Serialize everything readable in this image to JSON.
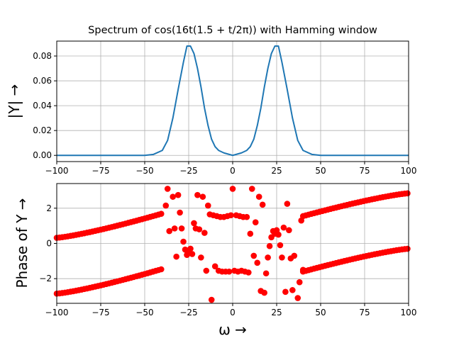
{
  "chart_data": [
    {
      "type": "line",
      "title": "Spectrum of cos(16t(1.5 + t/2π)) with Hamming window",
      "xlabel": "",
      "ylabel": "|Y| →",
      "xlim": [
        -100,
        100
      ],
      "ylim": [
        -0.005,
        0.092
      ],
      "x_ticks": [
        -100,
        -75,
        -50,
        -25,
        0,
        25,
        50,
        75,
        100
      ],
      "x_tick_labels": [
        "−100",
        "−75",
        "−50",
        "−25",
        "0",
        "25",
        "50",
        "75",
        "100"
      ],
      "y_ticks": [
        0,
        0.02,
        0.04,
        0.06,
        0.08
      ],
      "y_tick_labels": [
        "0.00",
        "0.02",
        "0.04",
        "0.06",
        "0.08"
      ],
      "grid": true,
      "line_color": "#1f77b4",
      "series": [
        {
          "x": [
            -100,
            -50,
            -45,
            -40,
            -37,
            -34,
            -31,
            -28,
            -26,
            -24,
            -22,
            -20,
            -18,
            -16,
            -14,
            -12,
            -10,
            -8,
            -5,
            0,
            5,
            8,
            10,
            12,
            14,
            16,
            18,
            20,
            22,
            24,
            26,
            28,
            31,
            34,
            37,
            40,
            45,
            50,
            100
          ],
          "y": [
            0.0,
            0.0,
            0.0008,
            0.004,
            0.012,
            0.03,
            0.053,
            0.075,
            0.088,
            0.088,
            0.082,
            0.07,
            0.055,
            0.038,
            0.024,
            0.013,
            0.007,
            0.004,
            0.002,
            0.0,
            0.002,
            0.004,
            0.007,
            0.013,
            0.024,
            0.038,
            0.055,
            0.07,
            0.082,
            0.088,
            0.088,
            0.075,
            0.053,
            0.03,
            0.012,
            0.004,
            0.0008,
            0.0,
            0.0
          ]
        }
      ]
    },
    {
      "type": "scatter",
      "title": "",
      "xlabel": "ω →",
      "ylabel": "Phase of Y →",
      "xlim": [
        -100,
        100
      ],
      "ylim": [
        -3.4,
        3.4
      ],
      "x_ticks": [
        -100,
        -75,
        -50,
        -25,
        0,
        25,
        50,
        75,
        100
      ],
      "x_tick_labels": [
        "−100",
        "−75",
        "−50",
        "−25",
        "0",
        "25",
        "50",
        "75",
        "100"
      ],
      "y_ticks": [
        -2,
        0,
        2
      ],
      "y_tick_labels": [
        "−2",
        "0",
        "2"
      ],
      "grid": true,
      "marker_color": "#ff0000",
      "points": [
        [
          -38,
          2.15
        ],
        [
          -37,
          3.1
        ],
        [
          -36,
          0.7
        ],
        [
          -34,
          2.65
        ],
        [
          -33,
          0.85
        ],
        [
          -32,
          -0.75
        ],
        [
          -31,
          2.75
        ],
        [
          -30,
          1.75
        ],
        [
          -29,
          0.85
        ],
        [
          -28,
          0.1
        ],
        [
          -27,
          -0.35
        ],
        [
          -26,
          -0.65
        ],
        [
          -25,
          -0.5
        ],
        [
          -24,
          -0.3
        ],
        [
          -23,
          -0.6
        ],
        [
          -22,
          1.15
        ],
        [
          -21,
          0.85
        ],
        [
          -20,
          2.75
        ],
        [
          -19,
          0.8
        ],
        [
          -18,
          -0.8
        ],
        [
          -17,
          2.65
        ],
        [
          -16,
          0.6
        ],
        [
          -15,
          -1.55
        ],
        [
          -14,
          2.15
        ],
        [
          -13,
          1.65
        ],
        [
          -12,
          -3.2
        ],
        [
          -11,
          1.6
        ],
        [
          -10,
          -1.3
        ],
        [
          -9,
          1.55
        ],
        [
          -8,
          -1.55
        ],
        [
          -7,
          1.5
        ],
        [
          -6,
          -1.6
        ],
        [
          -5,
          1.5
        ],
        [
          -4,
          -1.6
        ],
        [
          -3,
          1.55
        ],
        [
          -2,
          -1.6
        ],
        [
          -1,
          1.6
        ],
        [
          0,
          3.1
        ],
        [
          1,
          -1.55
        ],
        [
          2,
          1.6
        ],
        [
          3,
          -1.6
        ],
        [
          4,
          1.55
        ],
        [
          5,
          -1.55
        ],
        [
          6,
          1.5
        ],
        [
          7,
          -1.6
        ],
        [
          8,
          1.5
        ],
        [
          9,
          -1.65
        ],
        [
          10,
          0.55
        ],
        [
          11,
          3.1
        ],
        [
          12,
          -0.7
        ],
        [
          13,
          1.2
        ],
        [
          14,
          -1.1
        ],
        [
          15,
          2.65
        ],
        [
          16,
          -2.7
        ],
        [
          17,
          2.2
        ],
        [
          18,
          -2.8
        ],
        [
          19,
          -1.7
        ],
        [
          20,
          -0.8
        ],
        [
          21,
          -0.15
        ],
        [
          22,
          0.35
        ],
        [
          23,
          0.7
        ],
        [
          24,
          0.55
        ],
        [
          25,
          0.75
        ],
        [
          26,
          0.5
        ],
        [
          27,
          -0.1
        ],
        [
          28,
          -0.8
        ],
        [
          29,
          0.9
        ],
        [
          30,
          -2.75
        ],
        [
          31,
          2.25
        ],
        [
          32,
          0.75
        ],
        [
          33,
          -0.85
        ],
        [
          34,
          -2.65
        ],
        [
          35,
          -0.7
        ],
        [
          37,
          -3.1
        ],
        [
          38,
          -2.2
        ],
        [
          39,
          1.3
        ],
        [
          40,
          -1.5
        ]
      ],
      "trend_upper": {
        "x_start": -100,
        "x_end": -40,
        "y_start": 0.32,
        "y_end": 1.7,
        "x2_start": 40,
        "x2_end": 100,
        "y2_start": 1.55,
        "y2_end": 2.85
      },
      "trend_lower": {
        "x_start": -100,
        "x_end": -40,
        "y_start": -2.85,
        "y_end": -1.45,
        "x2_start": 40,
        "x2_end": 100,
        "y2_start": -1.6,
        "y2_end": -0.3
      }
    }
  ]
}
